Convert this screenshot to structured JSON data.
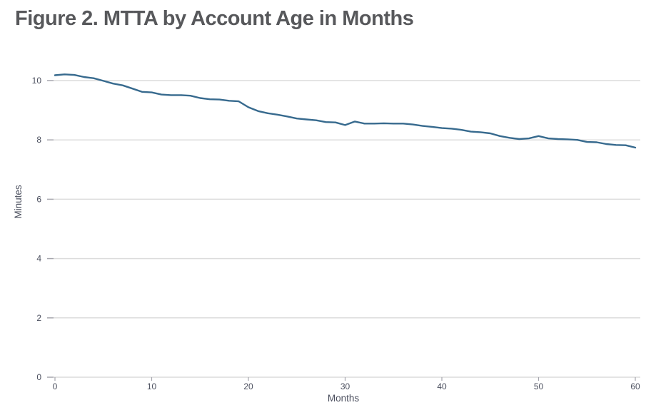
{
  "header": {
    "title": "Figure 2. MTTA by Account Age in Months"
  },
  "colors": {
    "line": "#376a8e",
    "gridline": "#dcdcdc",
    "tick": "#a5a5ad",
    "tick_text": "#4b4f5e",
    "title_text": "#57585b",
    "background": "#ffffff"
  },
  "chart_data": {
    "type": "line",
    "title": "Figure 2. MTTA by Account Age in Months",
    "xlabel": "Months",
    "ylabel": "Minutes",
    "xlim": [
      0,
      60
    ],
    "ylim": [
      0,
      10.7
    ],
    "xticks": [
      0,
      10,
      20,
      30,
      40,
      50,
      60
    ],
    "yticks": [
      0,
      2,
      4,
      6,
      8,
      10
    ],
    "grid": "horizontal",
    "legend": "none",
    "x": [
      0,
      1,
      2,
      3,
      4,
      5,
      6,
      7,
      8,
      9,
      10,
      11,
      12,
      13,
      14,
      15,
      16,
      17,
      18,
      19,
      20,
      21,
      22,
      23,
      24,
      25,
      26,
      27,
      28,
      29,
      30,
      31,
      32,
      33,
      34,
      35,
      36,
      37,
      38,
      39,
      40,
      41,
      42,
      43,
      44,
      45,
      46,
      47,
      48,
      49,
      50,
      51,
      52,
      53,
      54,
      55,
      56,
      57,
      58,
      59,
      60
    ],
    "series": [
      {
        "name": "MTTA",
        "values": [
          10.18,
          10.21,
          10.19,
          10.12,
          10.08,
          9.99,
          9.9,
          9.84,
          9.73,
          9.62,
          9.6,
          9.53,
          9.51,
          9.51,
          9.49,
          9.41,
          9.37,
          9.36,
          9.32,
          9.3,
          9.1,
          8.97,
          8.9,
          8.85,
          8.79,
          8.72,
          8.69,
          8.66,
          8.6,
          8.59,
          8.5,
          8.62,
          8.55,
          8.55,
          8.56,
          8.55,
          8.55,
          8.52,
          8.47,
          8.44,
          8.4,
          8.38,
          8.34,
          8.28,
          8.26,
          8.22,
          8.13,
          8.07,
          8.03,
          8.05,
          8.13,
          8.05,
          8.03,
          8.02,
          8.0,
          7.93,
          7.92,
          7.86,
          7.83,
          7.82,
          7.74
        ]
      }
    ]
  }
}
